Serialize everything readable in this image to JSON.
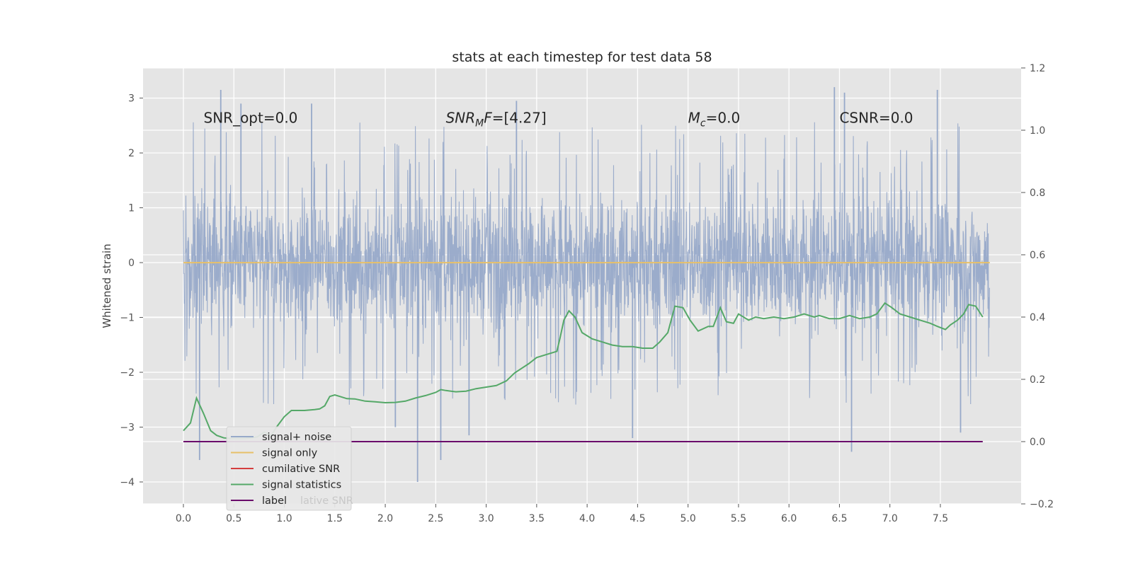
{
  "chart_data": {
    "type": "line",
    "title": "stats at each timestep for test data 58",
    "xlabel": "",
    "ylabel": "Whitened strain",
    "ylabel_right": "",
    "xlim": [
      -0.4,
      8.3
    ],
    "ylim": [
      -4.4,
      3.55
    ],
    "ylim_right": [
      -0.2,
      1.2
    ],
    "x_ticks": [
      0.0,
      0.5,
      1.0,
      1.5,
      2.0,
      2.5,
      3.0,
      3.5,
      4.0,
      4.5,
      5.0,
      5.5,
      6.0,
      6.5,
      7.0,
      7.5
    ],
    "x_tick_labels": [
      "0.0",
      "0.5",
      "1.0",
      "1.5",
      "2.0",
      "2.5",
      "3.0",
      "3.5",
      "4.0",
      "4.5",
      "5.0",
      "5.5",
      "6.0",
      "6.5",
      "7.0",
      "7.5"
    ],
    "y_ticks": [
      -4,
      -3,
      -2,
      -1,
      0,
      1,
      2,
      3
    ],
    "y_tick_labels": [
      "−4",
      "−3",
      "−2",
      "−1",
      "0",
      "1",
      "2",
      "3"
    ],
    "y_ticks_right": [
      -0.2,
      0.0,
      0.2,
      0.4,
      0.6,
      0.8,
      1.0,
      1.2
    ],
    "y_tick_labels_right": [
      "−0.2",
      "0.0",
      "0.2",
      "0.4",
      "0.6",
      "0.8",
      "1.0",
      "1.2"
    ],
    "grid": true,
    "legend_position": "bottom-left",
    "annotations": [
      {
        "text": "SNR_opt=0.0",
        "x": 0.2,
        "y": 2.55
      },
      {
        "text": "SNR_MF=[4.27]",
        "x": 2.6,
        "y": 2.55
      },
      {
        "text": "M_c=0.0",
        "x": 5.0,
        "y": 2.55
      },
      {
        "text": "CSNR=0.0",
        "x": 6.5,
        "y": 2.55
      }
    ],
    "series": [
      {
        "name": "signal+ noise",
        "axis": "left",
        "color": "#97a9c9",
        "note": "dense noise band roughly between -2.6 and 2.7 with spikes",
        "x": [
          0.0,
          7.99
        ],
        "envelope_low": -2.6,
        "envelope_high": 2.7,
        "spikes": [
          {
            "x": 0.16,
            "y": -3.6
          },
          {
            "x": 0.37,
            "y": 3.15
          },
          {
            "x": 0.57,
            "y": 2.9
          },
          {
            "x": 1.27,
            "y": 2.9
          },
          {
            "x": 2.1,
            "y": -3.0
          },
          {
            "x": 2.32,
            "y": -4.0
          },
          {
            "x": 2.55,
            "y": -3.6
          },
          {
            "x": 2.83,
            "y": -3.15
          },
          {
            "x": 4.45,
            "y": -3.2
          },
          {
            "x": 6.55,
            "y": 3.1
          },
          {
            "x": 6.62,
            "y": -3.45
          },
          {
            "x": 6.45,
            "y": 3.2
          },
          {
            "x": 7.47,
            "y": 3.15
          },
          {
            "x": 7.7,
            "y": -3.1
          },
          {
            "x": 3.3,
            "y": 2.95
          }
        ]
      },
      {
        "name": "signal only",
        "axis": "left",
        "color": "#e7c069",
        "x": [
          0.0,
          7.99
        ],
        "y": [
          0.0,
          0.0
        ]
      },
      {
        "name": "cumilative SNR",
        "axis": "right",
        "color": "#d43d3d",
        "x": [],
        "y": []
      },
      {
        "name": "signal statistics",
        "axis": "right",
        "color": "#55a868",
        "x": [
          0.0,
          0.07,
          0.13,
          0.2,
          0.27,
          0.33,
          0.4,
          0.47,
          0.53,
          0.6,
          0.67,
          0.73,
          0.8,
          0.87,
          0.93,
          1.0,
          1.07,
          1.12,
          1.2,
          1.3,
          1.35,
          1.4,
          1.45,
          1.5,
          1.55,
          1.62,
          1.7,
          1.8,
          1.9,
          2.0,
          2.1,
          2.2,
          2.3,
          2.4,
          2.5,
          2.55,
          2.6,
          2.7,
          2.8,
          2.9,
          3.0,
          3.1,
          3.2,
          3.28,
          3.35,
          3.42,
          3.5,
          3.6,
          3.7,
          3.73,
          3.77,
          3.82,
          3.88,
          3.95,
          4.05,
          4.15,
          4.25,
          4.35,
          4.45,
          4.55,
          4.65,
          4.72,
          4.8,
          4.87,
          4.95,
          5.02,
          5.1,
          5.2,
          5.25,
          5.32,
          5.38,
          5.45,
          5.5,
          5.6,
          5.67,
          5.75,
          5.85,
          5.95,
          6.05,
          6.15,
          6.25,
          6.3,
          6.4,
          6.5,
          6.6,
          6.7,
          6.8,
          6.87,
          6.95,
          7.02,
          7.1,
          7.2,
          7.3,
          7.4,
          7.47,
          7.55,
          7.6,
          7.67,
          7.73,
          7.78,
          7.85,
          7.92
        ],
        "y": [
          0.035,
          0.06,
          0.14,
          0.09,
          0.035,
          0.02,
          0.012,
          0.01,
          0.01,
          0.01,
          0.012,
          0.015,
          0.03,
          0.02,
          0.05,
          0.08,
          0.1,
          0.1,
          0.1,
          0.103,
          0.105,
          0.115,
          0.145,
          0.15,
          0.145,
          0.138,
          0.137,
          0.13,
          0.128,
          0.125,
          0.126,
          0.13,
          0.14,
          0.148,
          0.158,
          0.167,
          0.164,
          0.16,
          0.162,
          0.17,
          0.175,
          0.18,
          0.195,
          0.22,
          0.235,
          0.25,
          0.27,
          0.28,
          0.29,
          0.33,
          0.39,
          0.42,
          0.4,
          0.35,
          0.33,
          0.32,
          0.31,
          0.305,
          0.305,
          0.3,
          0.3,
          0.32,
          0.35,
          0.435,
          0.43,
          0.39,
          0.355,
          0.37,
          0.37,
          0.43,
          0.385,
          0.38,
          0.41,
          0.39,
          0.4,
          0.395,
          0.4,
          0.395,
          0.4,
          0.41,
          0.4,
          0.405,
          0.395,
          0.395,
          0.405,
          0.395,
          0.4,
          0.41,
          0.445,
          0.43,
          0.41,
          0.4,
          0.39,
          0.38,
          0.37,
          0.36,
          0.375,
          0.39,
          0.41,
          0.44,
          0.435,
          0.4
        ]
      },
      {
        "name": "label",
        "axis": "right",
        "color": "#6a0c6b",
        "x": [
          0.0,
          7.92
        ],
        "y": [
          0.0,
          0.0
        ]
      }
    ],
    "legend_overlap_text": "lative SNR"
  },
  "colors": {
    "plot_bg": "#e5e5e5",
    "grid": "#ffffff",
    "text": "#262626",
    "tick_text": "#555555"
  }
}
